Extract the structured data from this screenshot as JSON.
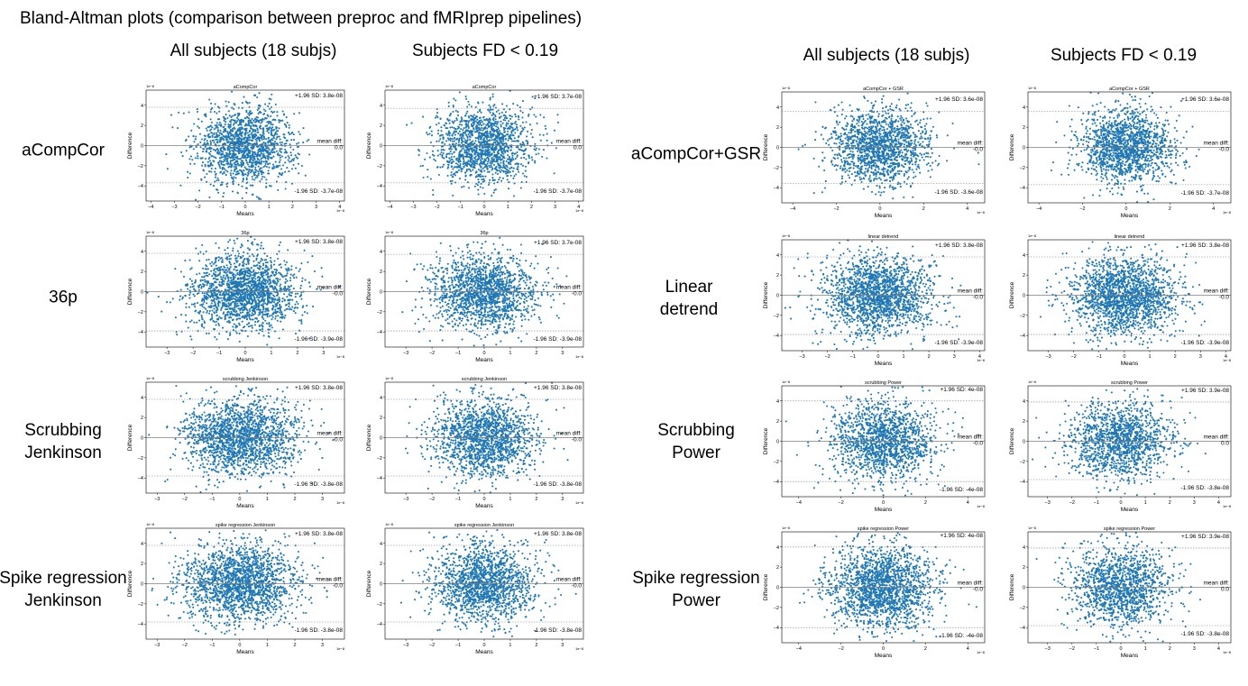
{
  "title": "Bland-Altman plots (comparison between preproc and fMRIprep pipelines)",
  "column_headers": [
    "All subjects (18 subjs)",
    "Subjects FD < 0.19",
    "All subjects (18 subjs)",
    "Subjects FD < 0.19"
  ],
  "row_labels": {
    "left": [
      [
        "aCompCor"
      ],
      [
        "36p"
      ],
      [
        "Scrubbing",
        "Jenkinson"
      ],
      [
        "Spike regression",
        "Jenkinson"
      ]
    ],
    "right": [
      [
        "aCompCor+GSR"
      ],
      [
        "Linear",
        "detrend"
      ],
      [
        "Scrubbing",
        "Power"
      ],
      [
        "Spike regression",
        "Power"
      ]
    ]
  },
  "colors": {
    "points": "#1f77b4",
    "mean_line": "#7f7f7f",
    "sd_line": "#7f7f7f"
  },
  "chart_data": [
    {
      "type": "scatter",
      "title": "aCompCor",
      "xlabel": "Means",
      "ylabel": "Difference",
      "x_multiplier": "1e−8",
      "y_multiplier": "1e−8",
      "xlim": [
        -4.2,
        4.2
      ],
      "ylim": [
        -5.5,
        5.5
      ],
      "xticks": [
        -4,
        -3,
        -2,
        -1,
        0,
        1,
        2,
        3,
        4
      ],
      "yticks": [
        -4,
        -2,
        0,
        2,
        4
      ],
      "upper_sd": 3.8,
      "mean": 0.0,
      "lower_sd": -3.7,
      "upper_label": "+1.96 SD: 3.8e-08",
      "mean_label": [
        "mean diff:",
        "0.0"
      ],
      "lower_label": "-1.96 SD: -3.7e-08",
      "n_points": 1500,
      "x_spread": 1.05,
      "y_spread": 1.95
    },
    {
      "type": "scatter",
      "title": "aCompCor",
      "xlabel": "Means",
      "ylabel": "Difference",
      "x_multiplier": "1e−8",
      "y_multiplier": "1e−8",
      "xlim": [
        -4.2,
        4.2
      ],
      "ylim": [
        -5.5,
        5.5
      ],
      "xticks": [
        -4,
        -3,
        -2,
        -1,
        0,
        1,
        2,
        3,
        4
      ],
      "yticks": [
        -4,
        -2,
        0,
        2,
        4
      ],
      "upper_sd": 3.7,
      "mean": 0.0,
      "lower_sd": -3.7,
      "upper_label": "+1.96 SD: 3.7e-08",
      "mean_label": [
        "mean diff:",
        "0.0"
      ],
      "lower_label": "-1.96 SD: -3.7e-08",
      "n_points": 1500,
      "x_spread": 1.0,
      "y_spread": 1.9
    },
    {
      "type": "scatter",
      "title": "aCompCor + GSR",
      "xlabel": "Means",
      "ylabel": "Difference",
      "x_multiplier": "1e−8",
      "y_multiplier": "1e−8",
      "xlim": [
        -4.5,
        4.8
      ],
      "ylim": [
        -5.5,
        5.5
      ],
      "xticks": [
        -4,
        -2,
        0,
        2,
        4
      ],
      "yticks": [
        -4,
        -2,
        0,
        2,
        4
      ],
      "upper_sd": 3.6,
      "mean": -0.0,
      "lower_sd": -3.6,
      "upper_label": "+1.96 SD: 3.6e-08",
      "mean_label": [
        "mean diff:",
        "-0.0"
      ],
      "lower_label": "-1.96 SD: -3.6e-08",
      "n_points": 1500,
      "x_spread": 1.15,
      "y_spread": 1.85
    },
    {
      "type": "scatter",
      "title": "aCompCor + GSR",
      "xlabel": "Means",
      "ylabel": "Difference",
      "x_multiplier": "1e−8",
      "y_multiplier": "1e−8",
      "xlim": [
        -4.5,
        4.8
      ],
      "ylim": [
        -5.5,
        5.5
      ],
      "xticks": [
        -4,
        -2,
        0,
        2,
        4
      ],
      "yticks": [
        -4,
        -2,
        0,
        2,
        4
      ],
      "upper_sd": 3.6,
      "mean": -0.0,
      "lower_sd": -3.7,
      "upper_label": "+1.96 SD: 3.6e-08",
      "mean_label": [
        "mean diff:",
        "-0.0"
      ],
      "lower_label": "-1.96 SD: -3.7e-08",
      "n_points": 1500,
      "x_spread": 1.1,
      "y_spread": 1.85
    },
    {
      "type": "scatter",
      "title": "36p",
      "xlabel": "Means",
      "ylabel": "Difference",
      "x_multiplier": "1e−8",
      "y_multiplier": "1e−8",
      "xlim": [
        -3.8,
        3.8
      ],
      "ylim": [
        -5.5,
        5.5
      ],
      "xticks": [
        -3,
        -2,
        -1,
        0,
        1,
        2,
        3
      ],
      "yticks": [
        -4,
        -2,
        0,
        2,
        4
      ],
      "upper_sd": 3.8,
      "mean": -0.0,
      "lower_sd": -3.9,
      "upper_label": "+1.96 SD: 3.8e-08",
      "mean_label": [
        "mean diff:",
        "-0.0"
      ],
      "lower_label": "-1.96 SD: -3.9e-08",
      "n_points": 1800,
      "x_spread": 1.05,
      "y_spread": 1.95
    },
    {
      "type": "scatter",
      "title": "36p",
      "xlabel": "Means",
      "ylabel": "Difference",
      "x_multiplier": "1e−8",
      "y_multiplier": "1e−8",
      "xlim": [
        -3.8,
        3.8
      ],
      "ylim": [
        -5.5,
        5.5
      ],
      "xticks": [
        -3,
        -2,
        -1,
        0,
        1,
        2,
        3
      ],
      "yticks": [
        -4,
        -2,
        0,
        2,
        4
      ],
      "upper_sd": 3.7,
      "mean": -0.0,
      "lower_sd": -3.9,
      "upper_label": "+1.96 SD: 3.7e-08",
      "mean_label": [
        "mean diff:",
        "-0.0"
      ],
      "lower_label": "-1.96 SD: -3.9e-08",
      "n_points": 1600,
      "x_spread": 1.0,
      "y_spread": 1.9
    },
    {
      "type": "scatter",
      "title": "linear detrend",
      "xlabel": "Means",
      "ylabel": "Difference",
      "x_multiplier": "1e−8",
      "y_multiplier": "1e−8",
      "xlim": [
        -3.8,
        4.2
      ],
      "ylim": [
        -5.5,
        5.5
      ],
      "xticks": [
        -3,
        -2,
        -1,
        0,
        1,
        2,
        3,
        4
      ],
      "yticks": [
        -4,
        -2,
        0,
        2,
        4
      ],
      "upper_sd": 3.8,
      "mean": -0.0,
      "lower_sd": -3.9,
      "upper_label": "+1.96 SD: 3.8e-08",
      "mean_label": [
        "mean diff:",
        "-0.0"
      ],
      "lower_label": "-1.96 SD: -3.9e-08",
      "n_points": 1800,
      "x_spread": 1.1,
      "y_spread": 1.95
    },
    {
      "type": "scatter",
      "title": "linear detrend",
      "xlabel": "Means",
      "ylabel": "Difference",
      "x_multiplier": "1e−8",
      "y_multiplier": "1e−8",
      "xlim": [
        -3.8,
        4.2
      ],
      "ylim": [
        -5.5,
        5.5
      ],
      "xticks": [
        -3,
        -2,
        -1,
        0,
        1,
        2,
        3,
        4
      ],
      "yticks": [
        -4,
        -2,
        0,
        2,
        4
      ],
      "upper_sd": 3.8,
      "mean": -0.0,
      "lower_sd": -3.9,
      "upper_label": "+1.96 SD: 3.8e-08",
      "mean_label": [
        "mean diff:",
        "-0.0"
      ],
      "lower_label": "-1.96 SD: -3.9e-08",
      "n_points": 1800,
      "x_spread": 1.05,
      "y_spread": 1.95
    },
    {
      "type": "scatter",
      "title": "scrubbing Jenkinson",
      "xlabel": "Means",
      "ylabel": "Difference",
      "x_multiplier": "1e−8",
      "y_multiplier": "1e−8",
      "xlim": [
        -3.4,
        3.8
      ],
      "ylim": [
        -5.5,
        5.5
      ],
      "xticks": [
        -3,
        -2,
        -1,
        0,
        1,
        2,
        3
      ],
      "yticks": [
        -4,
        -2,
        0,
        2,
        4
      ],
      "upper_sd": 3.8,
      "mean": -0.0,
      "lower_sd": -3.8,
      "upper_label": "+1.96 SD: 3.8e-08",
      "mean_label": [
        "mean diff:",
        "-0.0"
      ],
      "lower_label": "-1.96 SD: -3.8e-08",
      "n_points": 1800,
      "x_spread": 1.05,
      "y_spread": 1.9
    },
    {
      "type": "scatter",
      "title": "scrubbing Jenkinson",
      "xlabel": "Means",
      "ylabel": "Difference",
      "x_multiplier": "1e−8",
      "y_multiplier": "1e−8",
      "xlim": [
        -3.8,
        3.8
      ],
      "ylim": [
        -5.5,
        5.5
      ],
      "xticks": [
        -3,
        -2,
        -1,
        0,
        1,
        2,
        3
      ],
      "yticks": [
        -4,
        -2,
        0,
        2,
        4
      ],
      "upper_sd": 3.8,
      "mean": -0.0,
      "lower_sd": -3.8,
      "upper_label": "+1.96 SD: 3.8e-08",
      "mean_label": [
        "mean diff:",
        "-0.0"
      ],
      "lower_label": "-1.96 SD: -3.8e-08",
      "n_points": 1600,
      "x_spread": 1.0,
      "y_spread": 1.9
    },
    {
      "type": "scatter",
      "title": "scrubbing Power",
      "xlabel": "Means",
      "ylabel": "Difference",
      "x_multiplier": "1e−8",
      "y_multiplier": "1e−8",
      "xlim": [
        -4.8,
        4.8
      ],
      "ylim": [
        -5.5,
        5.5
      ],
      "xticks": [
        -4,
        -2,
        0,
        2,
        4
      ],
      "yticks": [
        -4,
        -2,
        0,
        2,
        4
      ],
      "upper_sd": 4.0,
      "mean": -0.0,
      "lower_sd": -4.0,
      "upper_label": "+1.96 SD: 4e-08",
      "mean_label": [
        "mean diff:",
        "-0.0"
      ],
      "lower_label": "-1.96 SD: -4e-08",
      "n_points": 1500,
      "x_spread": 1.25,
      "y_spread": 2.0
    },
    {
      "type": "scatter",
      "title": "scrubbing Power",
      "xlabel": "Means",
      "ylabel": "Difference",
      "x_multiplier": "1e−8",
      "y_multiplier": "1e−8",
      "xlim": [
        -3.8,
        4.5
      ],
      "ylim": [
        -5.5,
        5.5
      ],
      "xticks": [
        -3,
        -2,
        -1,
        0,
        1,
        2,
        3,
        4
      ],
      "yticks": [
        -4,
        -2,
        0,
        2,
        4
      ],
      "upper_sd": 3.9,
      "mean": 0.0,
      "lower_sd": -3.8,
      "upper_label": "+1.96 SD: 3.9e-08",
      "mean_label": [
        "mean diff:",
        "0.0"
      ],
      "lower_label": "-1.96 SD: -3.8e-08",
      "n_points": 1400,
      "x_spread": 1.05,
      "y_spread": 1.95
    },
    {
      "type": "scatter",
      "title": "spike regression Jenkinson",
      "xlabel": "Means",
      "ylabel": "Difference",
      "x_multiplier": "1e−8",
      "y_multiplier": "1e−8",
      "xlim": [
        -3.4,
        3.8
      ],
      "ylim": [
        -5.5,
        5.5
      ],
      "xticks": [
        -3,
        -2,
        -1,
        0,
        1,
        2,
        3
      ],
      "yticks": [
        -4,
        -2,
        0,
        2,
        4
      ],
      "upper_sd": 3.8,
      "mean": -0.0,
      "lower_sd": -3.8,
      "upper_label": "+1.96 SD: 3.8e-08",
      "mean_label": [
        "mean diff:",
        "-0.0"
      ],
      "lower_label": "-1.96 SD: -3.8e-08",
      "n_points": 1800,
      "x_spread": 1.05,
      "y_spread": 1.9
    },
    {
      "type": "scatter",
      "title": "spike regression Jenkinson",
      "xlabel": "Means",
      "ylabel": "Difference",
      "x_multiplier": "1e−8",
      "y_multiplier": "1e−8",
      "xlim": [
        -3.8,
        3.8
      ],
      "ylim": [
        -5.5,
        5.5
      ],
      "xticks": [
        -3,
        -2,
        -1,
        0,
        1,
        2,
        3
      ],
      "yticks": [
        -4,
        -2,
        0,
        2,
        4
      ],
      "upper_sd": 3.8,
      "mean": -0.0,
      "lower_sd": -3.8,
      "upper_label": "+1.96 SD: 3.8e-08",
      "mean_label": [
        "mean diff:",
        "-0.0"
      ],
      "lower_label": "-1.96 SD: -3.8e-08",
      "n_points": 1600,
      "x_spread": 1.0,
      "y_spread": 1.9
    },
    {
      "type": "scatter",
      "title": "spike regression Power",
      "xlabel": "Means",
      "ylabel": "Difference",
      "x_multiplier": "1e−8",
      "y_multiplier": "1e−8",
      "xlim": [
        -4.8,
        4.8
      ],
      "ylim": [
        -5.5,
        5.5
      ],
      "xticks": [
        -4,
        -2,
        0,
        2,
        4
      ],
      "yticks": [
        -4,
        -2,
        0,
        2,
        4
      ],
      "upper_sd": 4.0,
      "mean": -0.0,
      "lower_sd": -4.0,
      "upper_label": "+1.96 SD: 4e-08",
      "mean_label": [
        "mean diff:",
        "-0.0"
      ],
      "lower_label": "-1.96 SD: -4e-08",
      "n_points": 1800,
      "x_spread": 1.25,
      "y_spread": 2.0
    },
    {
      "type": "scatter",
      "title": "spike regression Power",
      "xlabel": "Means",
      "ylabel": "Difference",
      "x_multiplier": "1e−8",
      "y_multiplier": "1e−8",
      "xlim": [
        -3.8,
        4.5
      ],
      "ylim": [
        -5.5,
        5.5
      ],
      "xticks": [
        -3,
        -2,
        -1,
        0,
        1,
        2,
        3,
        4
      ],
      "yticks": [
        -4,
        -2,
        0,
        2,
        4
      ],
      "upper_sd": 3.9,
      "mean": 0.0,
      "lower_sd": -3.8,
      "upper_label": "+1.96 SD: 3.9e-08",
      "mean_label": [
        "mean diff:",
        "0.0"
      ],
      "lower_label": "-1.96 SD: -3.8e-08",
      "n_points": 1400,
      "x_spread": 1.05,
      "y_spread": 1.95
    }
  ]
}
